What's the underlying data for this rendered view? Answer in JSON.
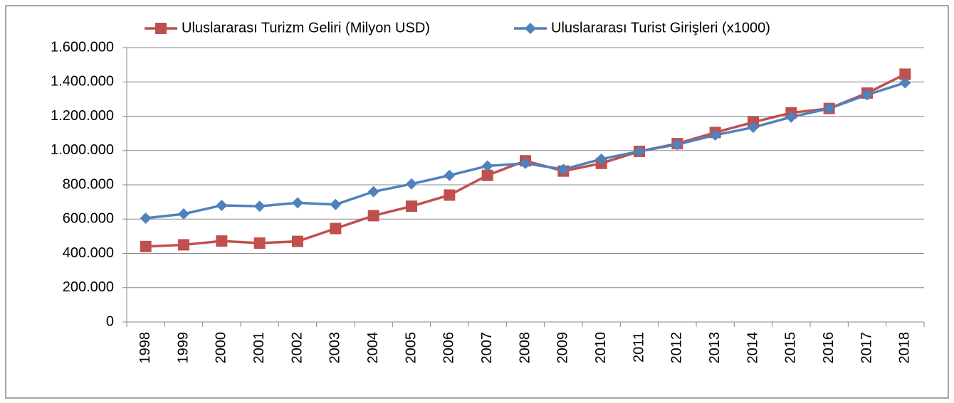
{
  "chart_data": {
    "type": "line",
    "categories": [
      "1998",
      "1999",
      "2000",
      "2001",
      "2002",
      "2003",
      "2004",
      "2005",
      "2006",
      "2007",
      "2008",
      "2009",
      "2010",
      "2011",
      "2012",
      "2013",
      "2014",
      "2015",
      "2016",
      "2017",
      "2018"
    ],
    "series": [
      {
        "name": "Uluslararası Turizm Geliri (Milyon USD)",
        "color": "#c0504d",
        "marker": "square",
        "values": [
          440000,
          450000,
          472000,
          460000,
          470000,
          545000,
          620000,
          675000,
          740000,
          855000,
          940000,
          880000,
          925000,
          995000,
          1040000,
          1105000,
          1165000,
          1220000,
          1245000,
          1335000,
          1445000
        ]
      },
      {
        "name": "Uluslararası Turist Girişleri (x1000)",
        "color": "#4f81bd",
        "marker": "diamond",
        "values": [
          605000,
          630000,
          680000,
          675000,
          695000,
          685000,
          760000,
          805000,
          855000,
          910000,
          925000,
          890000,
          950000,
          995000,
          1035000,
          1090000,
          1135000,
          1195000,
          1245000,
          1325000,
          1395000
        ]
      }
    ],
    "ylim": [
      0,
      1600000
    ],
    "yticks": [
      0,
      {
        "value": 200000,
        "label": "200.000"
      },
      {
        "value": 400000,
        "label": "400.000"
      },
      {
        "value": 600000,
        "label": "600.000"
      },
      {
        "value": 800000,
        "label": "800.000"
      },
      {
        "value": 1000000,
        "label": "1.000.000"
      },
      {
        "value": 1200000,
        "label": "1.200.000"
      },
      {
        "value": 1400000,
        "label": "1.400.000"
      },
      {
        "value": 1600000,
        "label": "1.600.000"
      }
    ],
    "grid": true,
    "legend": "top"
  }
}
